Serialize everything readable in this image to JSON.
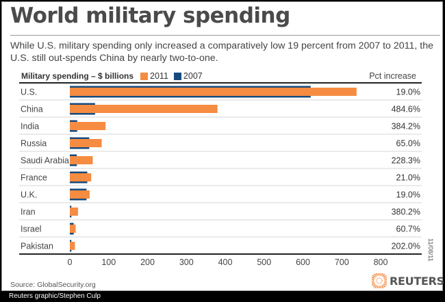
{
  "title": "World military spending",
  "subtitle": "While U.S. military spending only increased a comparatively low 19 percent from 2007 to 2011, the U.S. still out-spends China by nearly two-to-one.",
  "source": "Source: GlobalSecurity.org",
  "date": "11/08/11",
  "credit": "Reuters graphic/Stephen Culp",
  "logo_text": "REUTERS",
  "colors": {
    "s2011": "#f68c42",
    "s2007": "#174a7c",
    "logo": "#f68c42"
  },
  "chart_data": {
    "type": "bar",
    "orientation": "horizontal",
    "title": "World military spending",
    "xlabel": "Military spending – $ billions",
    "pct_header": "Pct increase",
    "categories": [
      "U.S.",
      "China",
      "India",
      "Russia",
      "Saudi Arabia",
      "France",
      "U.K.",
      "Iran",
      "Israel",
      "Pakistan"
    ],
    "series": [
      {
        "name": "2011",
        "values": [
          738,
          380,
          92,
          82,
          59,
          55,
          51,
          21,
          15,
          13
        ]
      },
      {
        "name": "2007",
        "values": [
          620,
          65,
          19,
          50,
          18,
          45,
          43,
          4,
          10,
          4
        ]
      }
    ],
    "pct_increase": [
      "19.0%",
      "484.6%",
      "384.2%",
      "65.0%",
      "228.3%",
      "21.0%",
      "19.0%",
      "380.2%",
      "60.7%",
      "202.0%"
    ],
    "xlim": [
      0,
      800
    ],
    "xticks": [
      0,
      100,
      200,
      300,
      400,
      500,
      600,
      700,
      800
    ],
    "legend": "top-left",
    "grid": false
  }
}
